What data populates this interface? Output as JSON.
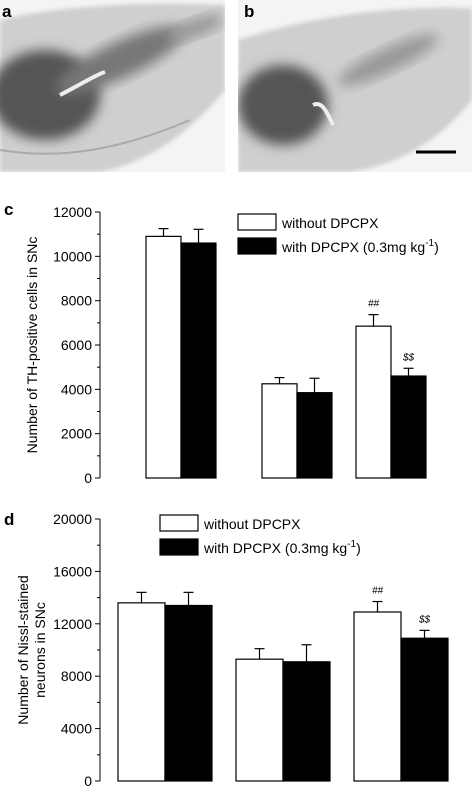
{
  "panel_labels": {
    "a": "a",
    "b": "b",
    "c": "c",
    "d": "d"
  },
  "colors": {
    "series_without": "#ffffff",
    "series_with": "#000000",
    "stroke": "#000000"
  },
  "chart_data": [
    {
      "type": "bar",
      "panel": "c",
      "ylabel": "Number of TH-positive cells in SNc",
      "ylim": [
        0,
        12000
      ],
      "yticks": [
        "0",
        "2000",
        "4000",
        "6000",
        "8000",
        "10000",
        "12000"
      ],
      "ytick_values": [
        0,
        2000,
        4000,
        6000,
        8000,
        10000,
        12000
      ],
      "legend": {
        "placement": "top-right",
        "entries": [
          "without DPCPX",
          "with DPCPX (0.3mg kg",
          "-1",
          ")"
        ]
      },
      "groups": 3,
      "series": [
        {
          "name": "without DPCPX",
          "values": [
            10900,
            4250,
            6850
          ],
          "errors": [
            350,
            280,
            520
          ]
        },
        {
          "name": "with DPCPX (0.3mg kg-1)",
          "values": [
            10600,
            3850,
            4600
          ],
          "errors": [
            620,
            650,
            350
          ]
        }
      ],
      "annotations": [
        {
          "text": "##",
          "group": 2,
          "series": 0
        },
        {
          "text": "$$",
          "group": 2,
          "series": 1
        }
      ]
    },
    {
      "type": "bar",
      "panel": "d",
      "ylabel_lines": [
        "Number of Nissl-stained",
        "neurons in SNc"
      ],
      "ylim": [
        0,
        20000
      ],
      "yticks": [
        "0",
        "4000",
        "8000",
        "12000",
        "16000",
        "20000"
      ],
      "ytick_values": [
        0,
        4000,
        8000,
        12000,
        16000,
        20000
      ],
      "legend": {
        "placement": "top-left",
        "entries": [
          "without DPCPX",
          "with DPCPX (0.3mg kg",
          "-1",
          ")"
        ]
      },
      "groups": 3,
      "series": [
        {
          "name": "without DPCPX",
          "values": [
            13600,
            9300,
            12900
          ],
          "errors": [
            800,
            800,
            800
          ]
        },
        {
          "name": "with DPCPX (0.3mg kg-1)",
          "values": [
            13400,
            9100,
            10900
          ],
          "errors": [
            1000,
            1300,
            600
          ]
        }
      ],
      "annotations": [
        {
          "text": "##",
          "group": 2,
          "series": 0
        },
        {
          "text": "$$",
          "group": 2,
          "series": 1
        }
      ]
    }
  ]
}
